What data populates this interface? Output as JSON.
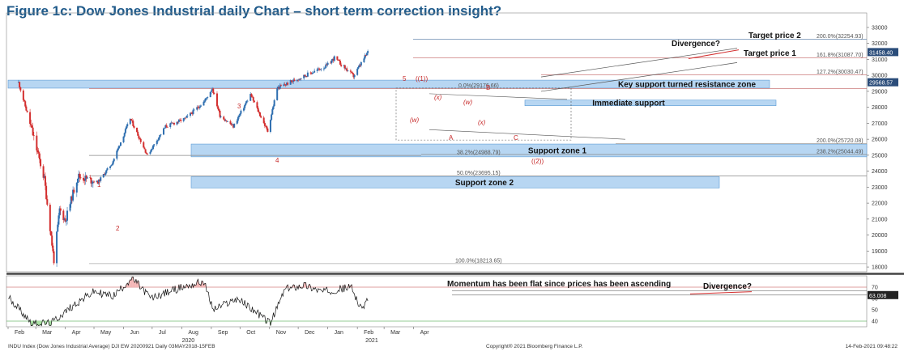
{
  "title": "Figure 1c: Dow Jones Industrial daily Chart – short term correction insight?",
  "colors": {
    "up": "#2f6fb0",
    "down": "#d32f2f",
    "zone": "#b7d6f2",
    "zone_edge": "#5b9bd5",
    "rsi": "#111111",
    "rsi_high": "#f4b6b6",
    "rsi_low": "#a7e0a1"
  },
  "chart_data": [
    {
      "type": "candlestick",
      "title": "",
      "ylim": [
        17700,
        33200
      ],
      "y_ticks": [
        18000,
        19000,
        20000,
        21000,
        22000,
        23000,
        24000,
        25000,
        26000,
        27000,
        28000,
        29000,
        30000,
        31000,
        32000,
        33000
      ],
      "y_tick_labels": [
        "18000",
        "19000",
        "20000",
        "21000",
        "22000",
        "23000",
        "24000",
        "25000",
        "26000",
        "27000",
        "28000",
        "29000",
        "30000",
        "31000",
        "32000",
        "33000"
      ],
      "last_price_label": "31458.40",
      "current_level_label": "29568.57",
      "key_points": [
        {
          "x": "Feb 12",
          "y": 29550
        },
        {
          "x": "Feb 24",
          "y": 27000
        },
        {
          "x": "Mar 10",
          "y": 23500
        },
        {
          "x": "Mar 20",
          "y": 18400
        },
        {
          "x": "Mar 26",
          "y": 21600
        },
        {
          "x": "Apr 1",
          "y": 20900
        },
        {
          "x": "Apr 14",
          "y": 23700
        },
        {
          "x": "May 5",
          "y": 23300
        },
        {
          "x": "May 20",
          "y": 24500
        },
        {
          "x": "Jun 8",
          "y": 27300
        },
        {
          "x": "Jun 26",
          "y": 25000
        },
        {
          "x": "Jul 15",
          "y": 26800
        },
        {
          "x": "Aug 5",
          "y": 27300
        },
        {
          "x": "Aug 25",
          "y": 28400
        },
        {
          "x": "Sep 2",
          "y": 29200
        },
        {
          "x": "Sep 10",
          "y": 27500
        },
        {
          "x": "Sep 24",
          "y": 26800
        },
        {
          "x": "Oct 12",
          "y": 28800
        },
        {
          "x": "Oct 30",
          "y": 26500
        },
        {
          "x": "Nov 9",
          "y": 29200
        },
        {
          "x": "Dec 1",
          "y": 29800
        },
        {
          "x": "Dec 31",
          "y": 30600
        },
        {
          "x": "Jan 8",
          "y": 31100
        },
        {
          "x": "Jan 28",
          "y": 29950
        },
        {
          "x": "Feb 12",
          "y": 31458
        }
      ],
      "levels": [
        {
          "label": "200.0%(32254.93)",
          "value": 32254.93
        },
        {
          "label": "161.8%(31087.70)",
          "value": 31087.7
        },
        {
          "label": "127.2%(30030.47)",
          "value": 30030.47
        },
        {
          "label": "0.0%(29176.66)",
          "value": 29176.66
        },
        {
          "label": "200.0%(25720.08)",
          "value": 25720.08
        },
        {
          "label": "238.2%(25044.49)",
          "value": 25044.49
        },
        {
          "label": "38.2%(24988.79)",
          "value": 24988.79
        },
        {
          "label": "50.0%(23695.15)",
          "value": 23695.15
        },
        {
          "label": "100.0%(18213.65)",
          "value": 18213.65
        }
      ],
      "zones": [
        {
          "label": "Key support turned resistance zone",
          "from": 29200,
          "to": 29700
        },
        {
          "label": "Immediate support",
          "from": 28100,
          "to": 28450
        },
        {
          "label": "Support zone 1",
          "from": 24900,
          "to": 25700
        },
        {
          "label": "Support zone 2",
          "from": 22950,
          "to": 23650
        }
      ],
      "annotations": [
        "Target price 2",
        "Target price 1",
        "Divergence?"
      ],
      "wave_labels": [
        "1",
        "2",
        "3",
        "4",
        "5",
        "((1))",
        "(w)",
        "(x)",
        "(w)",
        "(x)",
        "B",
        "A",
        "C",
        "((2))"
      ]
    },
    {
      "type": "line",
      "title": "",
      "ylim": [
        35,
        80
      ],
      "y_ticks": [
        40,
        50,
        60,
        70
      ],
      "y_tick_labels": [
        "40",
        "50",
        "60",
        "70"
      ],
      "last_value_label": "63.008",
      "overbought": 70,
      "oversold": 40,
      "annotations": [
        "Momentum has been flat since prices has been ascending",
        "Divergence?"
      ]
    }
  ],
  "x_axis": {
    "months": [
      "Feb",
      "Mar",
      "Apr",
      "May",
      "Jun",
      "Jul",
      "Aug",
      "Sep",
      "Oct",
      "Nov",
      "Dec",
      "Jan",
      "Feb",
      "Mar",
      "Apr"
    ],
    "years": [
      "2020",
      "2021"
    ]
  },
  "footer": {
    "left": "INDU Index (Dow Jones Industrial Average) DJI EW 20200921  Daily 03MAY2018-15FEB",
    "center": "Copyright® 2021 Bloomberg Finance L.P.",
    "right": "14-Feb-2021 09:48:22"
  }
}
